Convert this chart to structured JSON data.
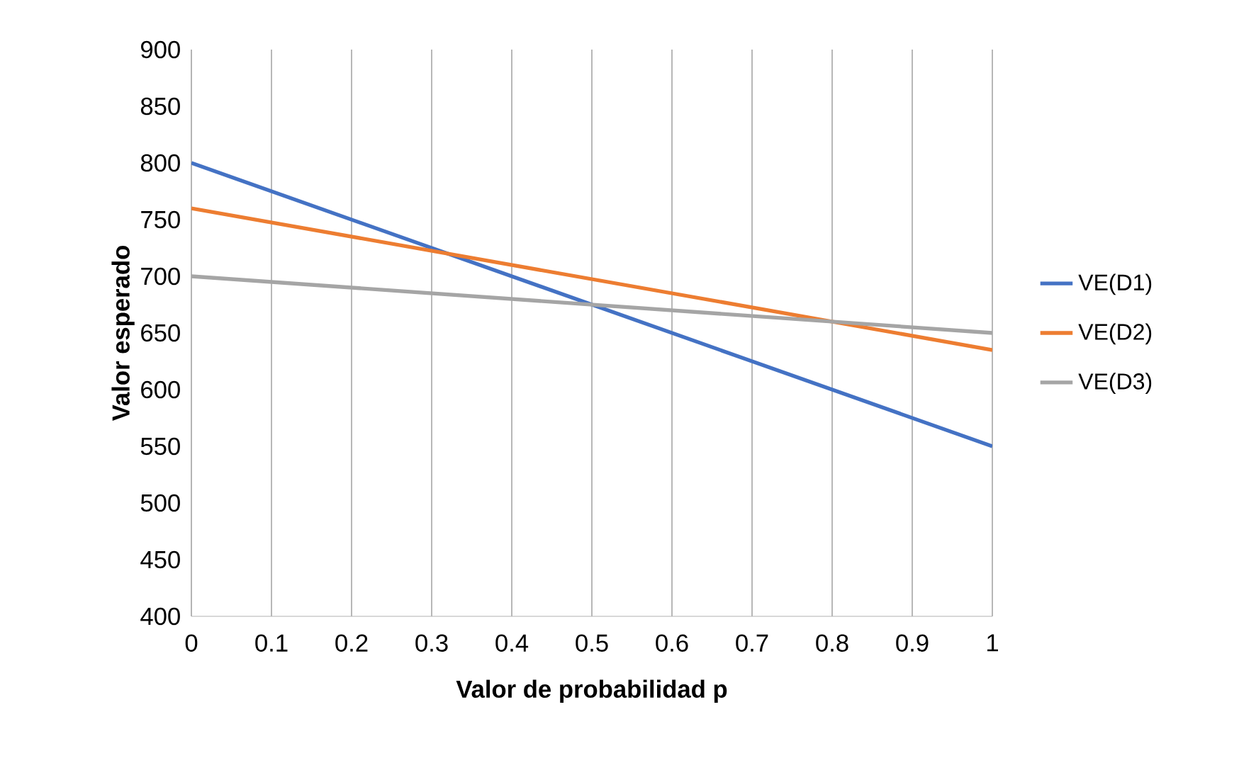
{
  "chart_data": {
    "type": "line",
    "xlabel": "Valor de probabilidad p",
    "ylabel": "Valor esperado",
    "xlim": [
      0,
      1
    ],
    "ylim": [
      400,
      900
    ],
    "xticks": [
      0,
      0.1,
      0.2,
      0.3,
      0.4,
      0.5,
      0.6,
      0.7,
      0.8,
      0.9,
      1
    ],
    "yticks": [
      400,
      450,
      500,
      550,
      600,
      650,
      700,
      750,
      800,
      850,
      900
    ],
    "x": [
      0,
      1
    ],
    "grid": "x",
    "legend": "right",
    "marker": "none",
    "line_style": "solid",
    "series": [
      {
        "name": "VE(D1)",
        "color": "#4472c4",
        "values": [
          800,
          550
        ]
      },
      {
        "name": "VE(D2)",
        "color": "#ed7d31",
        "values": [
          760,
          635
        ]
      },
      {
        "name": "VE(D3)",
        "color": "#a5a5a5",
        "values": [
          700,
          650
        ]
      }
    ]
  }
}
